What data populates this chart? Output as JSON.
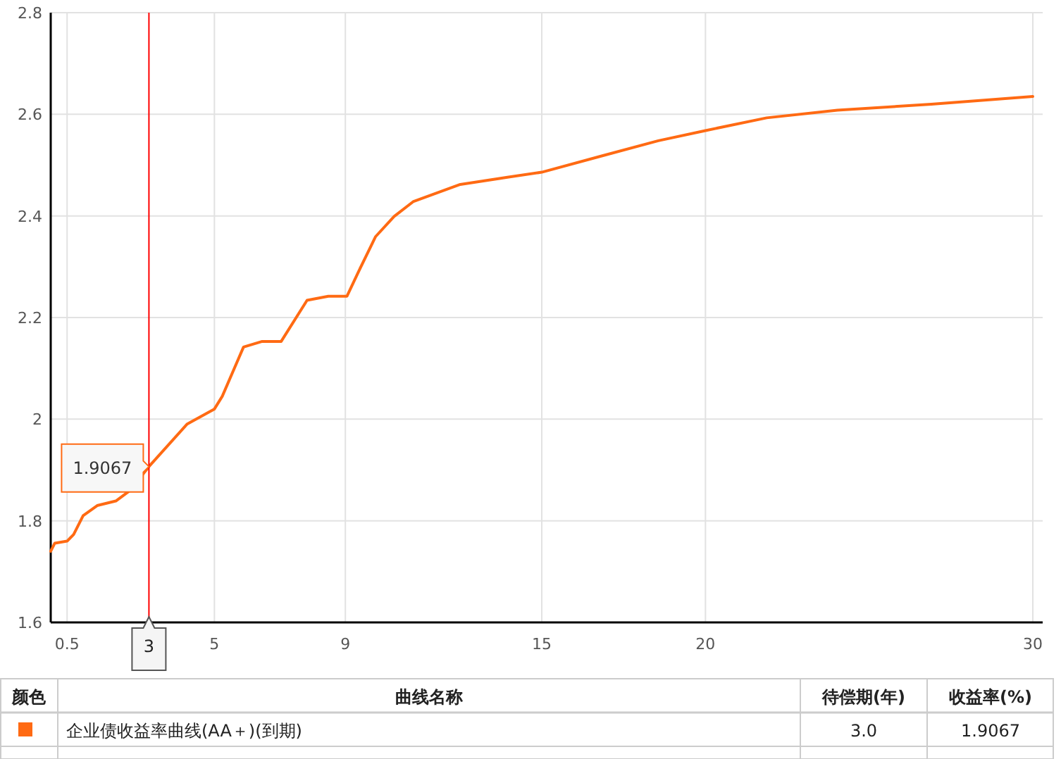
{
  "chart_data": {
    "type": "line",
    "x": [
      0,
      0.125,
      0.5,
      0.7,
      0.99,
      1.42,
      1.99,
      2.43,
      3,
      4.16,
      5,
      5.24,
      5.89,
      6.46,
      7.04,
      7.83,
      8.48,
      9.05,
      9.4,
      9.92,
      10.49,
      11.07,
      12.51,
      13.95,
      15,
      16.83,
      18.56,
      20,
      21.87,
      24.03,
      26.9,
      30
    ],
    "series": [
      {
        "name": "企业债收益率曲线(AA＋)(到期)",
        "color": "#ff6a13",
        "values": [
          1.74,
          1.756,
          1.76,
          1.773,
          1.81,
          1.83,
          1.839,
          1.86,
          1.9067,
          1.99,
          2.02,
          2.045,
          2.142,
          2.153,
          2.153,
          2.234,
          2.242,
          2.242,
          2.29,
          2.359,
          2.399,
          2.428,
          2.462,
          2.476,
          2.486,
          2.518,
          2.548,
          2.568,
          2.593,
          2.608,
          2.62,
          2.635
        ]
      }
    ],
    "xlim": [
      0,
      30
    ],
    "xticks": [
      0.5,
      5,
      9,
      15,
      20,
      30
    ],
    "ylim": [
      1.6,
      2.8
    ],
    "yticks": [
      1.6,
      1.8,
      2,
      2.2,
      2.4,
      2.6,
      2.8
    ],
    "grid": true,
    "legend": "bottom",
    "marker": "none",
    "line_style": "solid",
    "ref_lines": [
      {
        "axis": "x",
        "value": 3,
        "label": "3",
        "color": "#ff0000"
      }
    ],
    "annotations": [
      {
        "text": "1.9067",
        "x": 3,
        "y": 1.9067
      },
      "颜色",
      "曲线名称",
      "待偿期(年)",
      "收益率(%)",
      "3.0",
      "1.9067"
    ]
  }
}
